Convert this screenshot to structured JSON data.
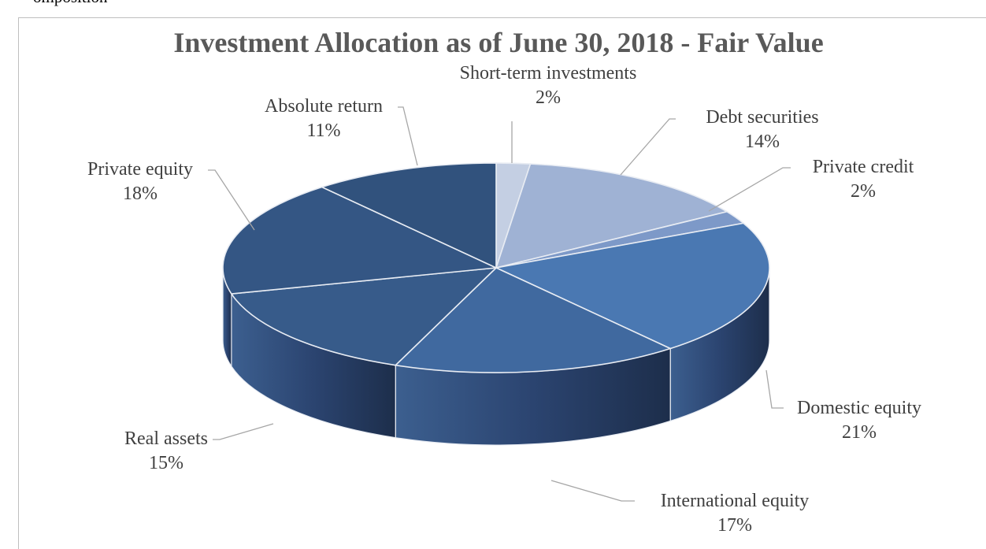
{
  "header_fragment": "omposition",
  "chart_data": {
    "type": "pie",
    "title": "Investment Allocation as of June 30, 2018 - Fair Value",
    "style": "3d-pie",
    "start_angle_deg": -90,
    "direction": "clockwise",
    "slices": [
      {
        "label": "Short-term investments",
        "value": 2,
        "pct_label": "2%",
        "color": "#c4cfe3"
      },
      {
        "label": "Debt securities",
        "value": 14,
        "pct_label": "14%",
        "color": "#9fb2d4"
      },
      {
        "label": "Private credit",
        "value": 2,
        "pct_label": "2%",
        "color": "#7d99c8"
      },
      {
        "label": "Domestic equity",
        "value": 21,
        "pct_label": "21%",
        "color": "#4a78b2"
      },
      {
        "label": "International equity",
        "value": 17,
        "pct_label": "17%",
        "color": "#40699f"
      },
      {
        "label": "Real assets",
        "value": 15,
        "pct_label": "15%",
        "color": "#375b8a"
      },
      {
        "label": "Private equity",
        "value": 18,
        "pct_label": "18%",
        "color": "#345684"
      },
      {
        "label": "Absolute return",
        "value": 11,
        "pct_label": "11%",
        "color": "#31527d"
      }
    ],
    "legend": "none",
    "data_labels": "category-and-percent"
  }
}
